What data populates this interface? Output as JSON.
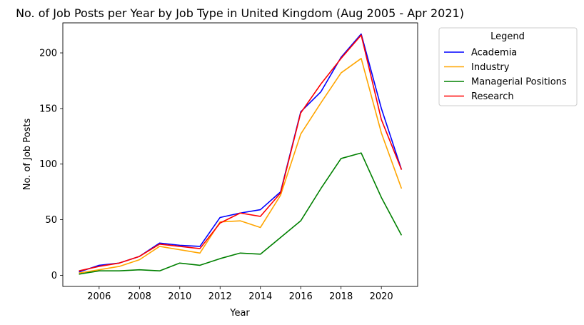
{
  "chart_data": {
    "type": "line",
    "title": "No. of Job Posts per Year by Job Type in United Kingdom (Aug 2005 - Apr 2021)",
    "xlabel": "Year",
    "ylabel": "No. of Job Posts",
    "xlim": [
      2004.2,
      2021.8
    ],
    "ylim": [
      -10,
      227
    ],
    "xticks": [
      2006,
      2008,
      2010,
      2012,
      2014,
      2016,
      2018,
      2020
    ],
    "yticks": [
      0,
      50,
      100,
      150,
      200
    ],
    "grid": false,
    "legend": {
      "title": "Legend",
      "placement": "outside-top-right"
    },
    "x": [
      2005,
      2006,
      2007,
      2008,
      2009,
      2010,
      2011,
      2012,
      2013,
      2014,
      2015,
      2016,
      2017,
      2018,
      2019,
      2020,
      2021
    ],
    "series": [
      {
        "name": "Academia",
        "color": "#0000ff",
        "values": [
          3,
          9,
          11,
          17,
          29,
          27,
          26,
          52,
          56,
          59,
          75,
          147,
          165,
          196,
          217,
          150,
          95
        ]
      },
      {
        "name": "Industry",
        "color": "#ffa500",
        "values": [
          2,
          5,
          8,
          14,
          26,
          23,
          20,
          48,
          49,
          43,
          72,
          127,
          155,
          182,
          195,
          128,
          78
        ]
      },
      {
        "name": "Managerial Positions",
        "color": "#008000",
        "values": [
          1,
          4,
          4,
          5,
          4,
          11,
          9,
          15,
          20,
          19,
          34,
          49,
          78,
          105,
          110,
          70,
          36
        ]
      },
      {
        "name": "Research",
        "color": "#ff0000",
        "values": [
          4,
          8,
          11,
          17,
          28,
          26,
          24,
          47,
          56,
          53,
          74,
          146,
          172,
          195,
          216,
          140,
          95
        ]
      }
    ]
  }
}
